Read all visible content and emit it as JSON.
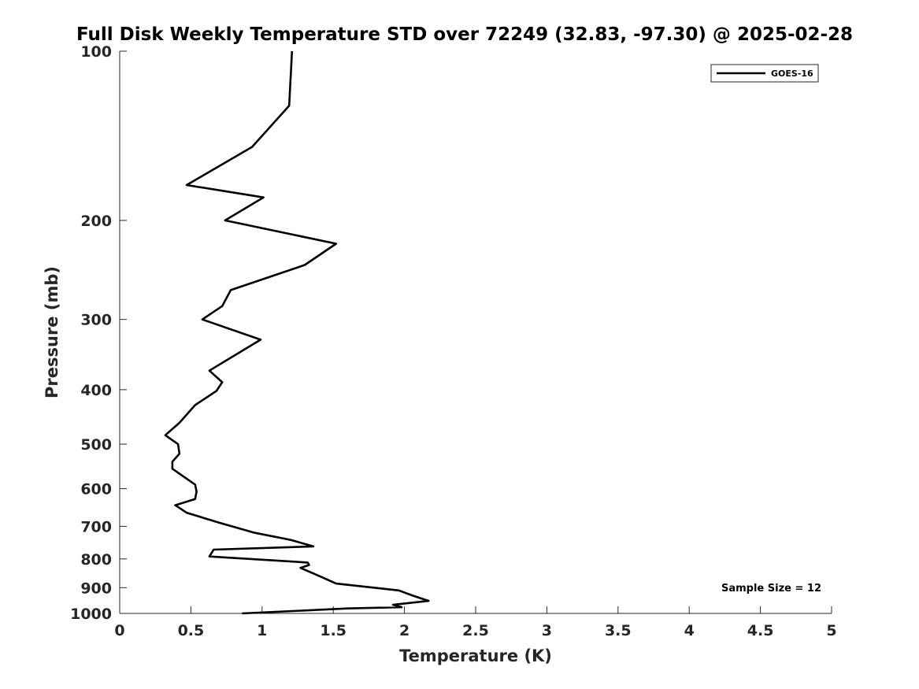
{
  "chart_data": {
    "type": "line",
    "title": "Full Disk Weekly Temperature STD over 72249 (32.83, -97.30) @ 2025-02-28",
    "xlabel": "Temperature (K)",
    "ylabel": "Pressure (mb)",
    "xlim": [
      0,
      5
    ],
    "ylim": [
      100,
      1000
    ],
    "y_scale": "log",
    "y_reversed": true,
    "grid": false,
    "legend_position": "top-right",
    "x_ticks": [
      "0",
      "0.5",
      "1",
      "1.5",
      "2",
      "2.5",
      "3",
      "3.5",
      "4",
      "4.5",
      "5"
    ],
    "y_ticks": [
      "100",
      "200",
      "300",
      "400",
      "500",
      "600",
      "700",
      "800",
      "900",
      "1000"
    ],
    "annotation": "Sample Size = 12",
    "series": [
      {
        "name": "GOES-16",
        "color": "#000000",
        "points": [
          [
            1.21,
            100
          ],
          [
            1.19,
            125
          ],
          [
            0.93,
            148
          ],
          [
            0.47,
            173
          ],
          [
            1.01,
            182
          ],
          [
            0.74,
            200
          ],
          [
            1.52,
            220
          ],
          [
            1.3,
            240
          ],
          [
            0.78,
            266
          ],
          [
            0.72,
            284
          ],
          [
            0.58,
            300
          ],
          [
            0.99,
            326
          ],
          [
            0.82,
            346
          ],
          [
            0.63,
            370
          ],
          [
            0.72,
            388
          ],
          [
            0.68,
            402
          ],
          [
            0.53,
            426
          ],
          [
            0.42,
            458
          ],
          [
            0.32,
            482
          ],
          [
            0.41,
            500
          ],
          [
            0.42,
            520
          ],
          [
            0.37,
            537
          ],
          [
            0.37,
            553
          ],
          [
            0.53,
            590
          ],
          [
            0.54,
            607
          ],
          [
            0.53,
            626
          ],
          [
            0.39,
            642
          ],
          [
            0.47,
            662
          ],
          [
            0.7,
            690
          ],
          [
            0.94,
            718
          ],
          [
            1.2,
            740
          ],
          [
            1.36,
            760
          ],
          [
            0.66,
            770
          ],
          [
            0.63,
            792
          ],
          [
            1.32,
            812
          ],
          [
            1.33,
            820
          ],
          [
            1.27,
            830
          ],
          [
            1.41,
            860
          ],
          [
            1.52,
            885
          ],
          [
            1.96,
            910
          ],
          [
            2.06,
            930
          ],
          [
            2.17,
            950
          ],
          [
            1.92,
            965
          ],
          [
            1.98,
            975
          ],
          [
            1.6,
            980
          ],
          [
            0.86,
            1000
          ]
        ]
      }
    ]
  }
}
